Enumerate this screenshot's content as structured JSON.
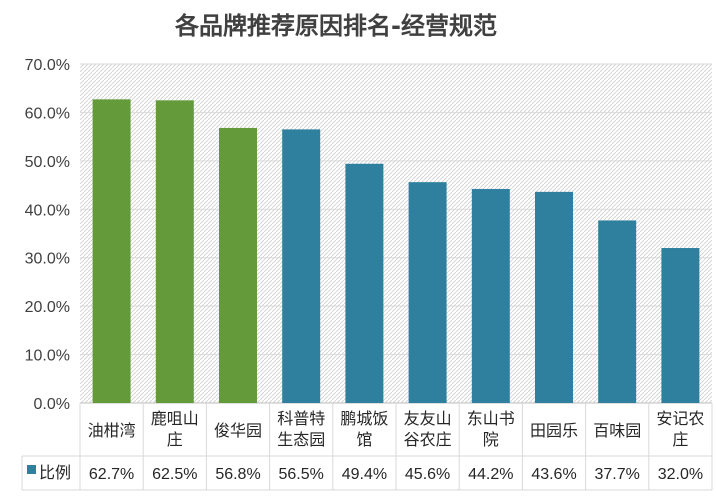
{
  "chart_data": {
    "type": "bar",
    "title": "各品牌推荐原因排名-经营规范",
    "categories": [
      [
        "油柑湾"
      ],
      [
        "鹿咀山",
        "庄"
      ],
      [
        "俊华园"
      ],
      [
        "科普特",
        "生态园"
      ],
      [
        "鹏城饭",
        "馆"
      ],
      [
        "友友山",
        "谷农庄"
      ],
      [
        "东山书",
        "院"
      ],
      [
        "田园乐"
      ],
      [
        "百味园"
      ],
      [
        "安记农",
        "庄"
      ]
    ],
    "series": [
      {
        "name": "比例",
        "values": [
          62.7,
          62.5,
          56.8,
          56.5,
          49.4,
          45.6,
          44.2,
          43.6,
          37.7,
          32.0
        ],
        "value_labels": [
          "62.7%",
          "62.5%",
          "56.8%",
          "56.5%",
          "49.4%",
          "45.6%",
          "44.2%",
          "43.6%",
          "37.7%",
          "32.0%"
        ]
      }
    ],
    "bar_colors": [
      "#659a3a",
      "#659a3a",
      "#659a3a",
      "#2e809e",
      "#2e809e",
      "#2e809e",
      "#2e809e",
      "#2e809e",
      "#2e809e",
      "#2e809e"
    ],
    "legend_color": "#2e809e",
    "ylim": [
      0,
      70
    ],
    "yticks": [
      0,
      10,
      20,
      30,
      40,
      50,
      60,
      70
    ],
    "ytick_labels": [
      "0.0%",
      "10.0%",
      "20.0%",
      "30.0%",
      "40.0%",
      "50.0%",
      "60.0%",
      "70.0%"
    ],
    "grid": true,
    "data_table": true
  }
}
